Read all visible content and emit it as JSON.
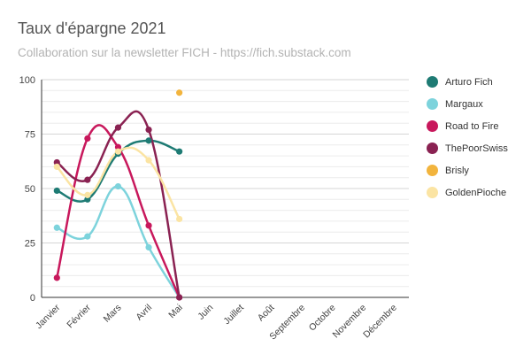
{
  "title": "Taux d'épargne 2021",
  "subtitle": "Collaboration sur la newsletter FICH - https://fich.substack.com",
  "chart_data": {
    "type": "line",
    "title": "Taux d'épargne 2021",
    "subtitle": "Collaboration sur la newsletter FICH - https://fich.substack.com",
    "categories": [
      "Janvier",
      "Février",
      "Mars",
      "Avril",
      "Mai",
      "Juin",
      "Juillet",
      "Août",
      "Septembre",
      "Octobre",
      "Novembre",
      "Décembre"
    ],
    "ylim": [
      0,
      100
    ],
    "yticks": [
      0,
      25,
      50,
      75,
      100
    ],
    "grid": true,
    "legend": "right",
    "series": [
      {
        "name": "Arturo Fich",
        "color": "#1e7b74",
        "values": [
          49,
          45,
          66,
          72,
          67,
          null,
          null,
          null,
          null,
          null,
          null,
          null
        ]
      },
      {
        "name": "Margaux",
        "color": "#7dd3dc",
        "values": [
          32,
          28,
          51,
          23,
          0,
          null,
          null,
          null,
          null,
          null,
          null,
          null
        ]
      },
      {
        "name": "Road to Fire",
        "color": "#c8185c",
        "values": [
          9,
          73,
          69,
          33,
          0,
          null,
          null,
          null,
          null,
          null,
          null,
          null
        ]
      },
      {
        "name": "ThePoorSwiss",
        "color": "#8a2252",
        "values": [
          62,
          54,
          78,
          77,
          0,
          null,
          null,
          null,
          null,
          null,
          null,
          null
        ]
      },
      {
        "name": "Brisly",
        "color": "#f2b43d",
        "values": [
          null,
          null,
          null,
          null,
          94,
          null,
          null,
          null,
          null,
          null,
          null,
          null
        ]
      },
      {
        "name": "GoldenPioche",
        "color": "#fbe4a3",
        "values": [
          60,
          47,
          67,
          63,
          36,
          null,
          null,
          null,
          null,
          null,
          null,
          null
        ]
      }
    ]
  }
}
